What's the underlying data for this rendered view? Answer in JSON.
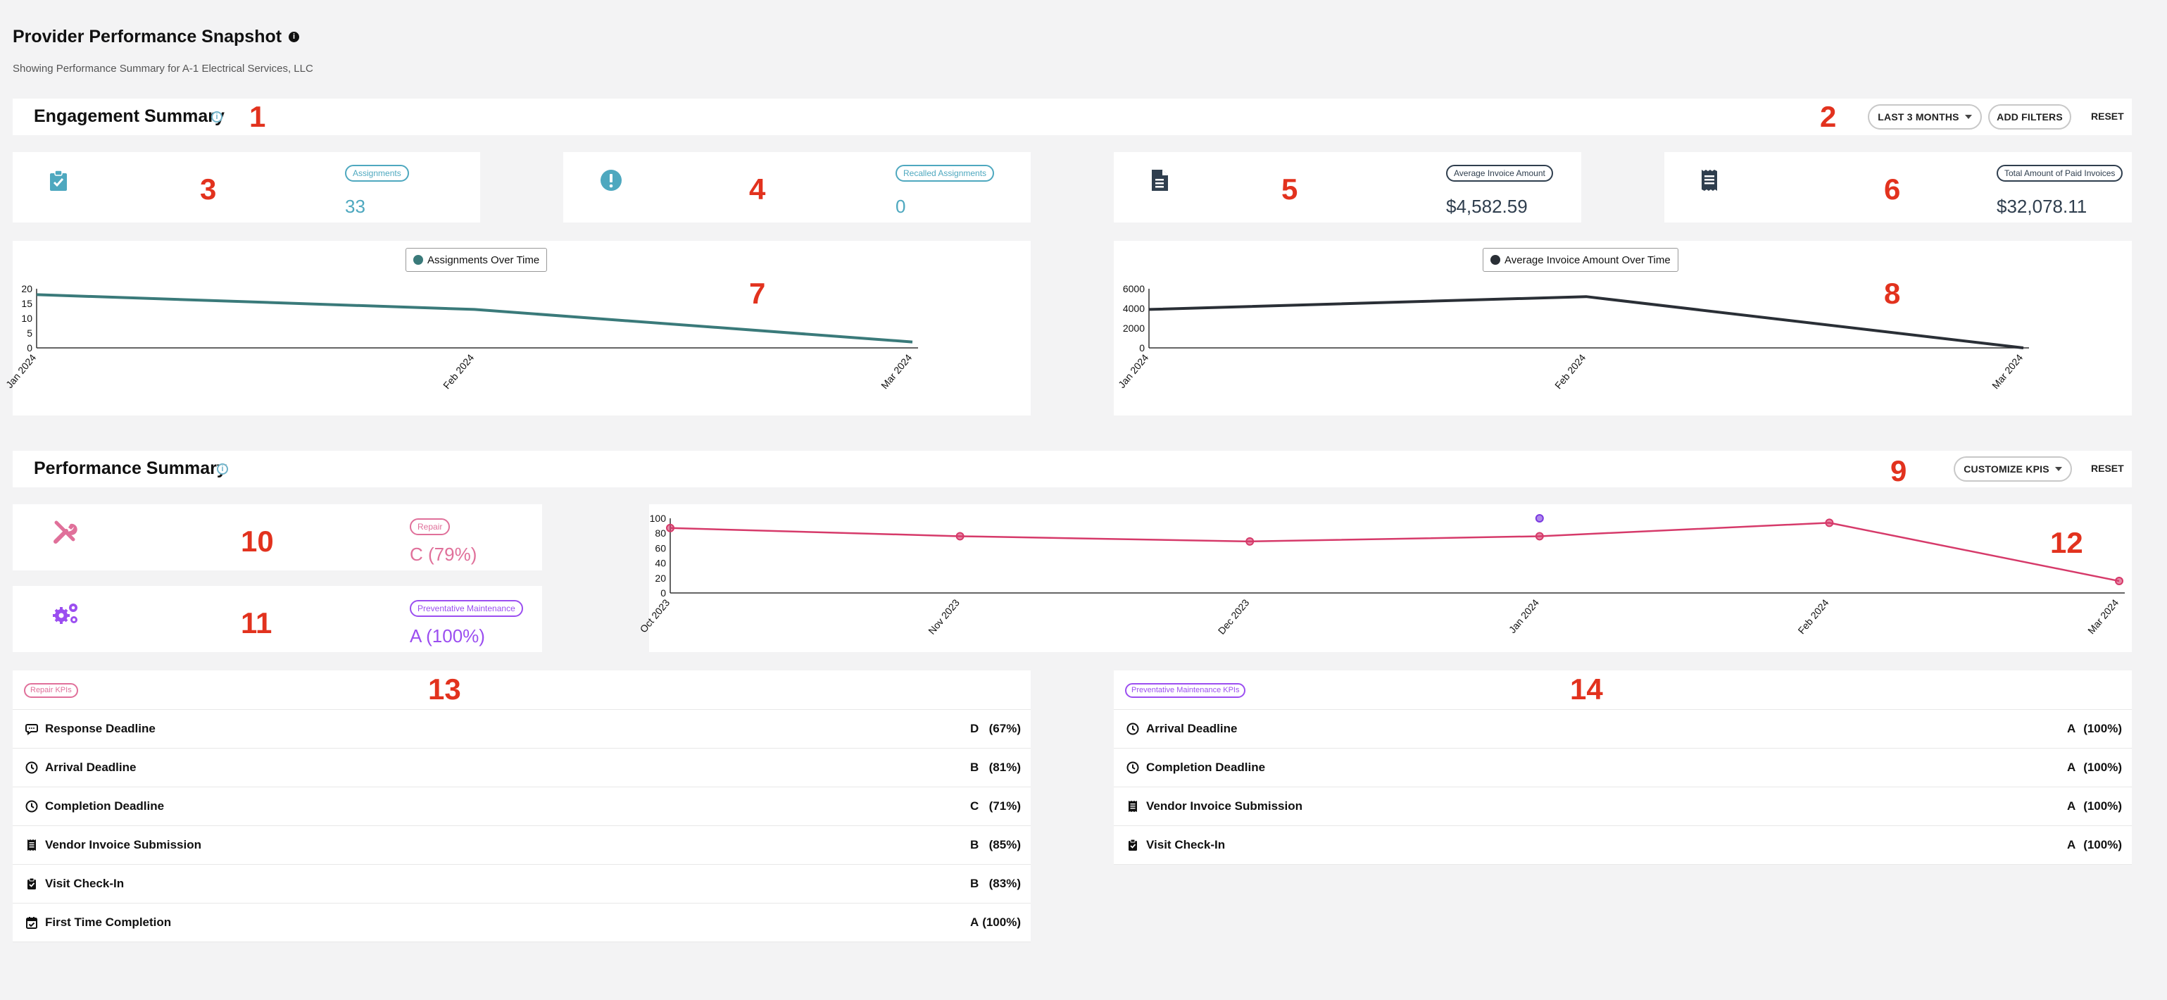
{
  "header": {
    "title": "Provider Performance Snapshot",
    "subtitle": "Showing Performance Summary for A-1 Electrical Services, LLC"
  },
  "markers": [
    "1",
    "2",
    "3",
    "4",
    "5",
    "6",
    "7",
    "8",
    "9",
    "10",
    "11",
    "12",
    "13",
    "14"
  ],
  "engagement": {
    "title": "Engagement Summary",
    "range_button": "LAST 3 MONTHS",
    "filters_button": "ADD FILTERS",
    "reset": "RESET",
    "cards": [
      {
        "icon": "clipboard-check-icon",
        "label": "Assignments",
        "value": "33",
        "color": "#4ea8bf"
      },
      {
        "icon": "exclamation-circle-icon",
        "label": "Recalled Assignments",
        "value": "0",
        "color": "#4ea8bf"
      },
      {
        "icon": "invoice-document-icon",
        "label": "Average Invoice Amount",
        "value": "$4,582.59",
        "color": "#2f3e4e"
      },
      {
        "icon": "receipt-icon",
        "label": "Total Amount of Paid Invoices",
        "value": "$32,078.11",
        "color": "#2f3e4e"
      }
    ]
  },
  "chart_data": [
    {
      "type": "line",
      "legend": "Assignments Over Time",
      "categories": [
        "Jan 2024",
        "Feb 2024",
        "Mar 2024"
      ],
      "yticks": [
        "0",
        "5",
        "10",
        "15",
        "20"
      ],
      "series": [
        {
          "name": "Assignments Over Time",
          "values": [
            18,
            13,
            2
          ],
          "color": "#3a7a7a"
        }
      ],
      "ylim": [
        0,
        20
      ]
    },
    {
      "type": "line",
      "legend": "Average Invoice Amount Over Time",
      "categories": [
        "Jan 2024",
        "Feb 2024",
        "Mar 2024"
      ],
      "yticks": [
        "0",
        "2000",
        "4000",
        "6000"
      ],
      "series": [
        {
          "name": "Average Invoice Amount Over Time",
          "values": [
            3900,
            5200,
            0
          ],
          "color": "#2a2f36"
        }
      ],
      "ylim": [
        0,
        6000
      ]
    },
    {
      "type": "line",
      "categories": [
        "Oct 2023",
        "Nov 2023",
        "Dec 2023",
        "Jan 2024",
        "Feb 2024",
        "Mar 2024"
      ],
      "yticks": [
        "0",
        "20",
        "40",
        "60",
        "80",
        "100"
      ],
      "series": [
        {
          "values": [
            87,
            76,
            69,
            76,
            94,
            16
          ],
          "color": "#d63a6a"
        },
        {
          "values": [
            null,
            null,
            null,
            100,
            null,
            null
          ],
          "color": "#7a3ae0"
        }
      ],
      "ylim": [
        0,
        100
      ]
    }
  ],
  "performance": {
    "title": "Performance Summary",
    "customize_button": "CUSTOMIZE KPIS",
    "reset": "RESET",
    "grades": [
      {
        "icon": "tools-icon",
        "label": "Repair",
        "value": "C (79%)",
        "color": "#e0709a"
      },
      {
        "icon": "gears-icon",
        "label": "Preventative Maintenance",
        "value": "A (100%)",
        "color": "#9b4ef0"
      }
    ]
  },
  "repair_kpis": {
    "badge": "Repair KPIs",
    "rows": [
      {
        "icon": "chat-bubble-icon",
        "label": "Response Deadline",
        "grade": "D",
        "pct": "(67%)"
      },
      {
        "icon": "clock-icon",
        "label": "Arrival Deadline",
        "grade": "B",
        "pct": "(81%)"
      },
      {
        "icon": "clock-icon",
        "label": "Completion Deadline",
        "grade": "C",
        "pct": "(71%)"
      },
      {
        "icon": "receipt-icon",
        "label": "Vendor Invoice Submission",
        "grade": "B",
        "pct": "(85%)"
      },
      {
        "icon": "clipboard-check-icon",
        "label": "Visit Check-In",
        "grade": "B",
        "pct": "(83%)"
      },
      {
        "icon": "calendar-check-icon",
        "label": "First Time Completion",
        "grade": "A",
        "pct": "(100%)"
      }
    ]
  },
  "pm_kpis": {
    "badge": "Preventative Maintenance KPIs",
    "rows": [
      {
        "icon": "clock-icon",
        "label": "Arrival Deadline",
        "grade": "A",
        "pct": "(100%)"
      },
      {
        "icon": "clock-icon",
        "label": "Completion Deadline",
        "grade": "A",
        "pct": "(100%)"
      },
      {
        "icon": "receipt-icon",
        "label": "Vendor Invoice Submission",
        "grade": "A",
        "pct": "(100%)"
      },
      {
        "icon": "clipboard-check-icon",
        "label": "Visit Check-In",
        "grade": "A",
        "pct": "(100%)"
      }
    ]
  }
}
